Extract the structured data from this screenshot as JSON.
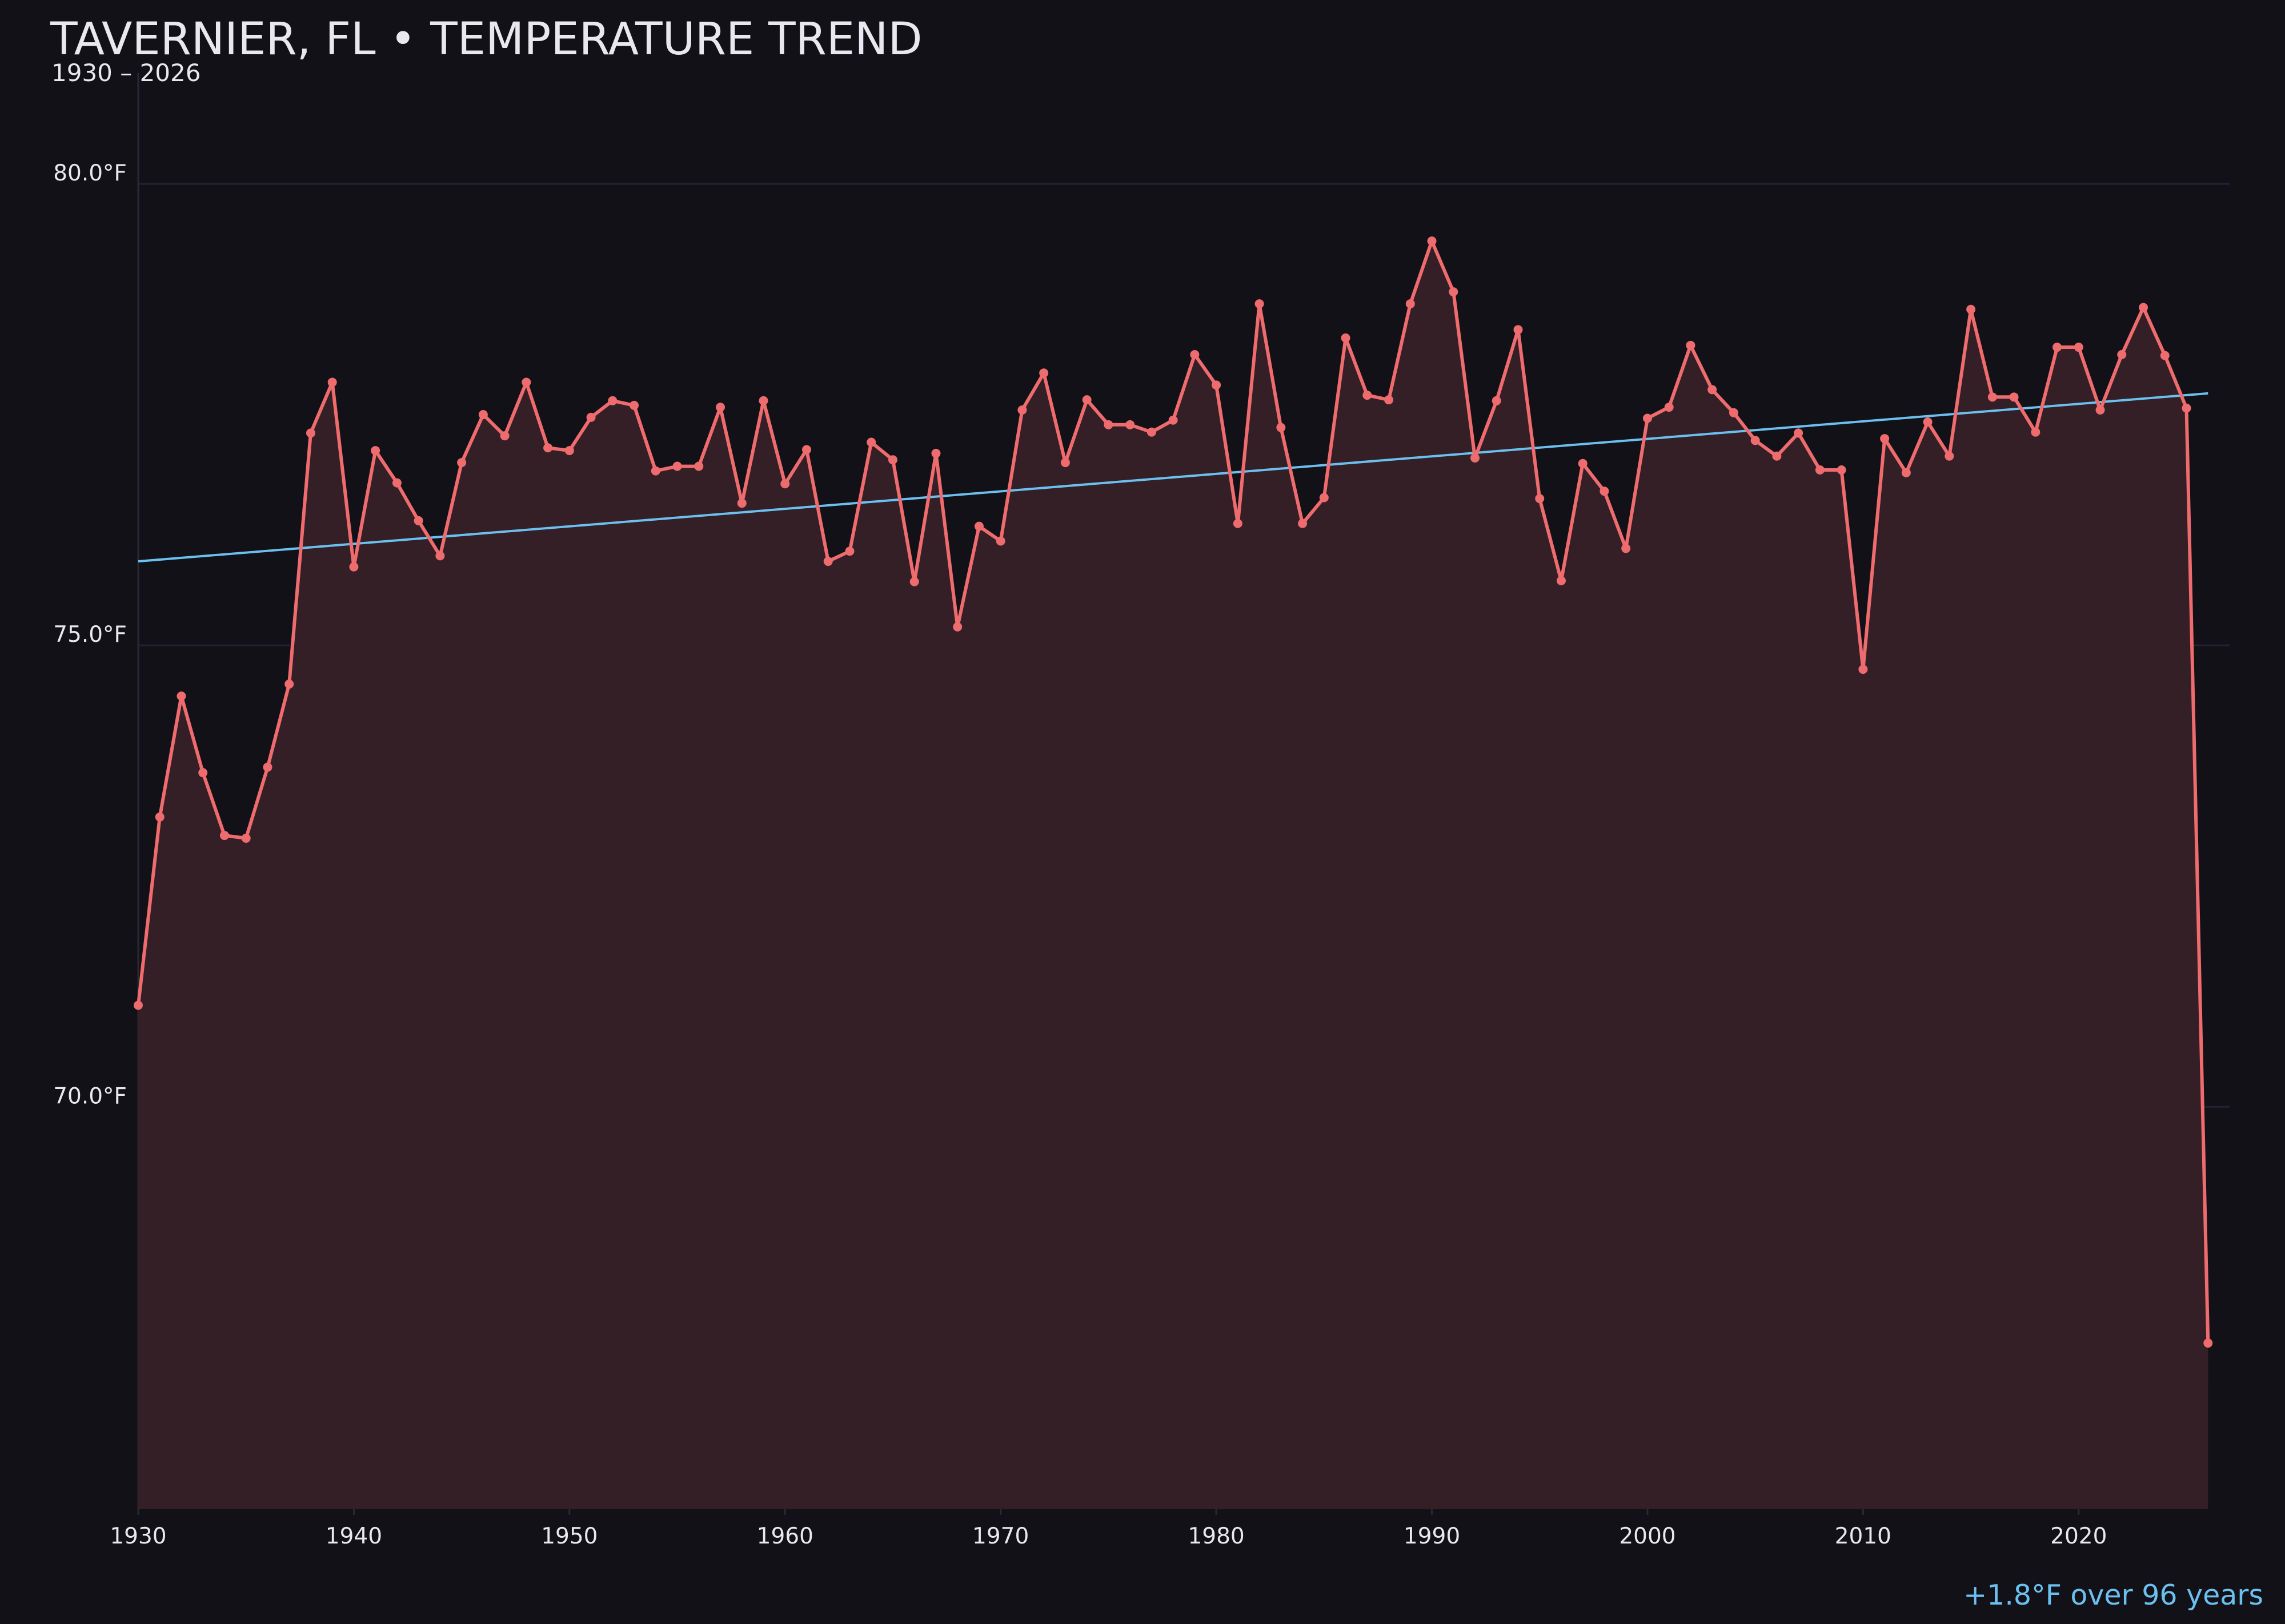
{
  "chart_data": {
    "type": "line",
    "title": "TAVERNIER, FL • TEMPERATURE TREND",
    "subtitle": "1930 – 2026",
    "x": [
      1930,
      1931,
      1932,
      1933,
      1934,
      1935,
      1936,
      1937,
      1938,
      1939,
      1940,
      1941,
      1942,
      1943,
      1944,
      1945,
      1946,
      1947,
      1948,
      1949,
      1950,
      1951,
      1952,
      1953,
      1954,
      1955,
      1956,
      1957,
      1958,
      1959,
      1960,
      1961,
      1962,
      1963,
      1964,
      1965,
      1966,
      1967,
      1968,
      1969,
      1970,
      1971,
      1972,
      1973,
      1974,
      1975,
      1976,
      1977,
      1978,
      1979,
      1980,
      1981,
      1982,
      1983,
      1984,
      1985,
      1986,
      1987,
      1988,
      1989,
      1990,
      1991,
      1992,
      1993,
      1994,
      1995,
      1996,
      1997,
      1998,
      1999,
      2000,
      2001,
      2002,
      2003,
      2004,
      2005,
      2006,
      2007,
      2008,
      2009,
      2010,
      2011,
      2012,
      2013,
      2014,
      2015,
      2016,
      2017,
      2018,
      2019,
      2020,
      2021,
      2022,
      2023,
      2024,
      2025,
      2026
    ],
    "values": [
      71.1,
      73.14,
      74.45,
      73.62,
      72.94,
      72.91,
      73.68,
      74.58,
      77.3,
      77.85,
      75.85,
      77.11,
      76.76,
      76.35,
      75.97,
      76.98,
      77.5,
      77.27,
      77.85,
      77.14,
      77.11,
      77.47,
      77.65,
      77.6,
      76.89,
      76.94,
      76.94,
      77.58,
      76.54,
      77.65,
      76.75,
      77.12,
      75.91,
      76.02,
      77.2,
      77.01,
      75.69,
      77.08,
      75.2,
      76.29,
      76.13,
      77.55,
      77.95,
      76.98,
      77.66,
      77.39,
      77.39,
      77.31,
      77.44,
      78.15,
      77.82,
      76.32,
      78.7,
      77.36,
      76.32,
      76.6,
      78.33,
      77.71,
      77.66,
      78.7,
      79.38,
      78.83,
      77.03,
      77.65,
      78.42,
      76.59,
      75.7,
      76.97,
      76.67,
      76.05,
      77.46,
      77.58,
      78.25,
      77.77,
      77.52,
      77.22,
      77.05,
      77.3,
      76.9,
      76.9,
      74.74,
      77.24,
      76.87,
      77.42,
      77.05,
      78.64,
      77.69,
      77.69,
      77.31,
      78.23,
      78.23,
      77.55,
      78.15,
      78.66,
      78.14,
      77.57,
      67.44
    ],
    "color": "#ee6b6e",
    "fill": "#341f26",
    "trend": {
      "x": [
        1930,
        2026
      ],
      "values": [
        75.91,
        77.73
      ],
      "color": "#6cc0f0"
    },
    "annotation": "+1.8°F over 96 years",
    "xlim": [
      1930,
      2027
    ],
    "ylim": [
      65.64,
      81.2
    ],
    "xticks": [
      1930,
      1940,
      1950,
      1960,
      1970,
      1980,
      1990,
      2000,
      2010,
      2020
    ],
    "yticks": [
      {
        "value": 70,
        "label": "70.0°F"
      },
      {
        "value": 75,
        "label": "75.0°F"
      },
      {
        "value": 80,
        "label": "80.0°F"
      }
    ],
    "grid": true
  }
}
